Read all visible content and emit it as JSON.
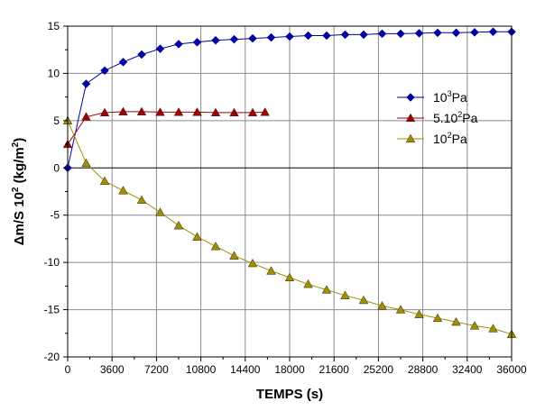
{
  "chart_data": {
    "type": "line",
    "title": "",
    "xlabel": "TEMPS (s)",
    "ylabel": "Δm/S 10² (kg/m²)",
    "xlim": [
      0,
      36000
    ],
    "ylim": [
      -20,
      15
    ],
    "x_ticks": [
      "0",
      "3600",
      "7200",
      "10800",
      "14400",
      "18000",
      "21600",
      "25200",
      "28800",
      "32400",
      "36000"
    ],
    "y_ticks": [
      "15",
      "10",
      "5",
      "0",
      "-5",
      "-10",
      "-15",
      "-20"
    ],
    "grid": true,
    "legend_position": "right",
    "series": [
      {
        "name": "10³Pa",
        "name_base": "10",
        "name_sup": "3",
        "name_unit": "Pa",
        "color": "#0000a0",
        "marker": "diamond",
        "x": [
          0,
          1500,
          3000,
          4500,
          6000,
          7500,
          9000,
          10500,
          12000,
          13500,
          15000,
          16500,
          18000,
          19500,
          21000,
          22500,
          24000,
          25500,
          27000,
          28500,
          30000,
          31500,
          33000,
          34500,
          36000
        ],
        "y": [
          0,
          8.9,
          10.3,
          11.2,
          12.0,
          12.6,
          13.1,
          13.3,
          13.5,
          13.6,
          13.7,
          13.8,
          13.9,
          14.0,
          14.0,
          14.1,
          14.1,
          14.2,
          14.2,
          14.25,
          14.3,
          14.3,
          14.35,
          14.4,
          14.4
        ]
      },
      {
        "name": "5.10²Pa",
        "name_base": "5.10",
        "name_sup": "2",
        "name_unit": "Pa",
        "color": "#a00000",
        "marker": "triangle",
        "x": [
          0,
          1500,
          3000,
          4500,
          6000,
          7500,
          9000,
          10500,
          12000,
          13500,
          15000,
          16000
        ],
        "y": [
          2.5,
          5.4,
          5.85,
          5.95,
          5.95,
          5.9,
          5.9,
          5.9,
          5.85,
          5.85,
          5.85,
          5.9
        ]
      },
      {
        "name": "10²Pa",
        "name_base": "10",
        "name_sup": "2",
        "name_unit": "Pa",
        "color": "#a09000",
        "marker": "triangle",
        "x": [
          0,
          1500,
          3000,
          4500,
          6000,
          7500,
          9000,
          10500,
          12000,
          13500,
          15000,
          16500,
          18000,
          19500,
          21000,
          22500,
          24000,
          25500,
          27000,
          28500,
          30000,
          31500,
          33000,
          34500,
          36000
        ],
        "y": [
          5.0,
          0.5,
          -1.4,
          -2.4,
          -3.4,
          -4.7,
          -6.1,
          -7.3,
          -8.3,
          -9.3,
          -10.1,
          -10.9,
          -11.6,
          -12.3,
          -12.9,
          -13.5,
          -14.0,
          -14.6,
          -15.0,
          -15.5,
          -15.9,
          -16.3,
          -16.7,
          -17.0,
          -17.6
        ]
      }
    ]
  }
}
